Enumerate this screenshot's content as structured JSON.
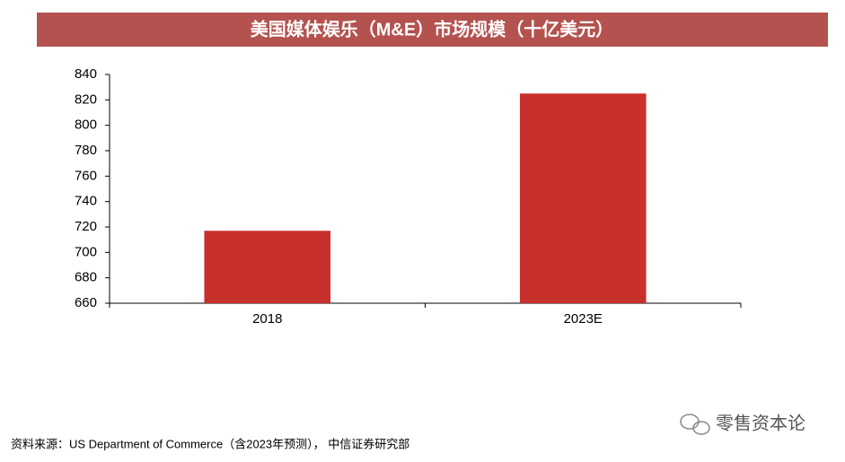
{
  "chart_data": {
    "type": "bar",
    "title": "美国媒体娱乐（M&E）市场规模（十亿美元）",
    "categories": [
      "2018",
      "2023E"
    ],
    "values": [
      717,
      825
    ],
    "color": "#c8302d",
    "ylim": [
      660,
      840
    ],
    "yticks": [
      660,
      680,
      700,
      720,
      740,
      760,
      780,
      800,
      820,
      840
    ],
    "grid": false
  },
  "source": "资料来源：US Department of Commerce（含2023年预测），  中信证券研究部",
  "watermark": "零售资本论"
}
